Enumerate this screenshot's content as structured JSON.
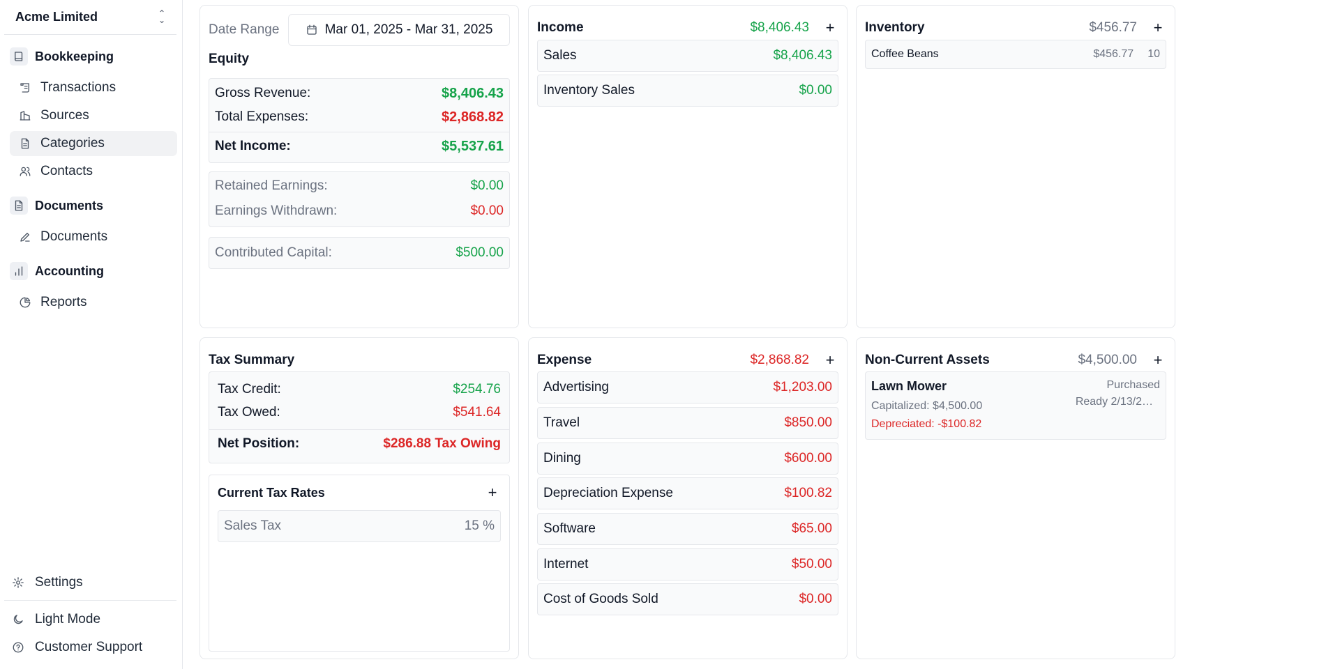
{
  "sidebar": {
    "org_name": "Acme Limited",
    "groups": [
      {
        "label": "Bookkeeping",
        "items": [
          "Transactions",
          "Sources",
          "Categories",
          "Contacts"
        ]
      },
      {
        "label": "Documents",
        "items": [
          "Documents"
        ]
      },
      {
        "label": "Accounting",
        "items": [
          "Reports"
        ]
      }
    ],
    "active_item": "Categories",
    "bottom": {
      "settings": "Settings",
      "light_mode": "Light Mode",
      "support": "Customer Support"
    }
  },
  "equity": {
    "date_range_label": "Date Range",
    "date_range_value": "Mar 01, 2025 - Mar 31, 2025",
    "title": "Equity",
    "gross_revenue_label": "Gross Revenue:",
    "gross_revenue": "$8,406.43",
    "total_expenses_label": "Total Expenses:",
    "total_expenses": "$2,868.82",
    "net_income_label": "Net Income:",
    "net_income": "$5,537.61",
    "retained_label": "Retained Earnings:",
    "retained": "$0.00",
    "withdrawn_label": "Earnings Withdrawn:",
    "withdrawn": "$0.00",
    "contributed_label": "Contributed Capital:",
    "contributed": "$500.00"
  },
  "income": {
    "title": "Income",
    "total": "$8,406.43",
    "rows": [
      {
        "label": "Sales",
        "value": "$8,406.43"
      },
      {
        "label": "Inventory Sales",
        "value": "$0.00"
      }
    ]
  },
  "inventory": {
    "title": "Inventory",
    "total": "$456.77",
    "items": [
      {
        "name": "Coffee Beans",
        "value": "$456.77",
        "qty": "10"
      }
    ]
  },
  "tax": {
    "title": "Tax Summary",
    "credit_label": "Tax Credit:",
    "credit": "$254.76",
    "owed_label": "Tax Owed:",
    "owed": "$541.64",
    "net_label": "Net Position:",
    "net": "$286.88 Tax Owing",
    "rates_title": "Current Tax Rates",
    "rates": [
      {
        "name": "Sales Tax",
        "rate": "15 %"
      }
    ]
  },
  "expense": {
    "title": "Expense",
    "total": "$2,868.82",
    "rows": [
      {
        "label": "Advertising",
        "value": "$1,203.00"
      },
      {
        "label": "Travel",
        "value": "$850.00"
      },
      {
        "label": "Dining",
        "value": "$600.00"
      },
      {
        "label": "Depreciation Expense",
        "value": "$100.82"
      },
      {
        "label": "Software",
        "value": "$65.00"
      },
      {
        "label": "Internet",
        "value": "$50.00"
      },
      {
        "label": "Cost of Goods Sold",
        "value": "$0.00"
      }
    ]
  },
  "assets": {
    "title": "Non-Current Assets",
    "total": "$4,500.00",
    "items": [
      {
        "name": "Lawn Mower",
        "status": "Purchased",
        "capitalized": "Capitalized: $4,500.00",
        "ready": "Ready 2/13/2…",
        "depreciated": "Depreciated: -$100.82"
      }
    ]
  },
  "colors": {
    "positive": "#16a34a",
    "negative": "#dc2626",
    "muted": "#6b7280",
    "border": "#e5e7eb"
  }
}
